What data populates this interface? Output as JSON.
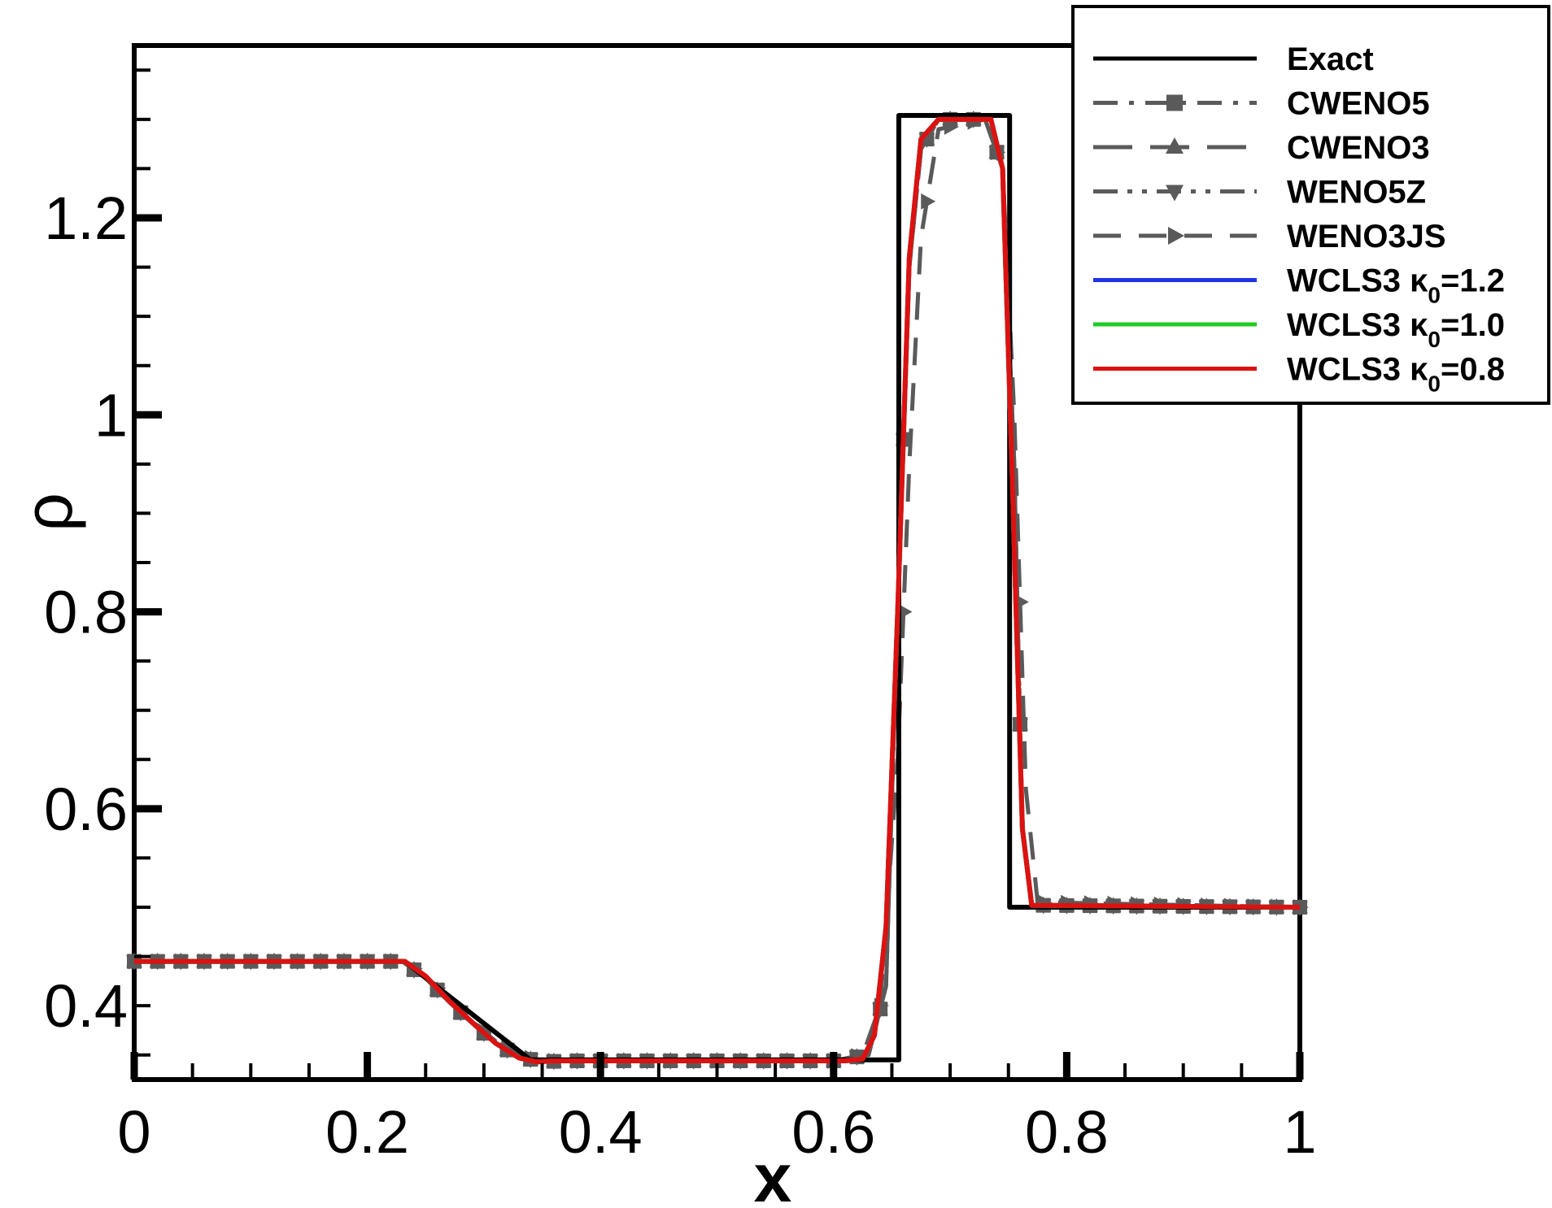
{
  "chart_data": {
    "type": "line",
    "xlabel": "x",
    "ylabel": "ρ",
    "xlim": [
      0,
      1
    ],
    "ylim": [
      0.325,
      1.375
    ],
    "x_ticks": [
      0,
      0.2,
      0.4,
      0.6,
      0.8,
      1
    ],
    "x_tick_labels": [
      "0",
      "0.2",
      "0.4",
      "0.6",
      "0.8",
      "1"
    ],
    "y_ticks": [
      0.4,
      0.6,
      0.8,
      1.0,
      1.2
    ],
    "y_tick_labels": [
      "0.4",
      "0.6",
      "0.8",
      "1",
      "1.2"
    ],
    "grid": false,
    "legend_position": "top-right",
    "series": [
      {
        "name": "Exact",
        "color": "#000000",
        "style": "solid",
        "marker": "none",
        "x": [
          0,
          0.232,
          0.34,
          0.656,
          0.656,
          0.751,
          0.751,
          1.0
        ],
        "y": [
          0.445,
          0.445,
          0.345,
          0.345,
          1.304,
          1.304,
          0.5,
          0.5
        ]
      },
      {
        "name": "CWENO5",
        "color": "#5a5a5a",
        "style": "dashdot",
        "marker": "square",
        "x": [
          0,
          0.23,
          0.25,
          0.27,
          0.29,
          0.31,
          0.33,
          0.35,
          0.37,
          0.6,
          0.63,
          0.645,
          0.655,
          0.665,
          0.675,
          0.69,
          0.73,
          0.745,
          0.755,
          0.762,
          0.77,
          1.0
        ],
        "y": [
          0.445,
          0.445,
          0.428,
          0.404,
          0.382,
          0.362,
          0.348,
          0.343,
          0.344,
          0.344,
          0.35,
          0.42,
          0.8,
          1.15,
          1.27,
          1.3,
          1.3,
          1.25,
          0.95,
          0.58,
          0.502,
          0.5
        ]
      },
      {
        "name": "CWENO3",
        "color": "#5a5a5a",
        "style": "longdash",
        "marker": "triangle-up",
        "x": [
          0,
          0.23,
          0.25,
          0.27,
          0.29,
          0.31,
          0.33,
          0.35,
          0.37,
          0.6,
          0.63,
          0.645,
          0.655,
          0.665,
          0.675,
          0.69,
          0.73,
          0.745,
          0.755,
          0.762,
          0.77,
          1.0
        ],
        "y": [
          0.445,
          0.445,
          0.428,
          0.404,
          0.382,
          0.362,
          0.348,
          0.343,
          0.344,
          0.344,
          0.35,
          0.42,
          0.8,
          1.15,
          1.27,
          1.3,
          1.3,
          1.25,
          0.95,
          0.58,
          0.502,
          0.5
        ]
      },
      {
        "name": "WENO5Z",
        "color": "#5a5a5a",
        "style": "dashdotdot",
        "marker": "triangle-down",
        "x": [
          0,
          0.23,
          0.25,
          0.27,
          0.29,
          0.31,
          0.33,
          0.35,
          0.37,
          0.6,
          0.63,
          0.645,
          0.655,
          0.665,
          0.675,
          0.69,
          0.73,
          0.745,
          0.755,
          0.762,
          0.77,
          1.0
        ],
        "y": [
          0.445,
          0.445,
          0.428,
          0.404,
          0.382,
          0.362,
          0.348,
          0.343,
          0.344,
          0.344,
          0.35,
          0.42,
          0.8,
          1.15,
          1.27,
          1.3,
          1.3,
          1.25,
          0.95,
          0.58,
          0.502,
          0.5
        ]
      },
      {
        "name": "WENO3JS",
        "color": "#5a5a5a",
        "style": "dash",
        "marker": "triangle-right",
        "x": [
          0,
          0.23,
          0.25,
          0.27,
          0.29,
          0.31,
          0.33,
          0.35,
          0.37,
          0.6,
          0.625,
          0.64,
          0.655,
          0.665,
          0.675,
          0.69,
          0.73,
          0.745,
          0.755,
          0.765,
          0.775,
          1.0
        ],
        "y": [
          0.445,
          0.445,
          0.43,
          0.406,
          0.384,
          0.364,
          0.35,
          0.344,
          0.344,
          0.344,
          0.35,
          0.4,
          0.65,
          0.95,
          1.18,
          1.29,
          1.3,
          1.25,
          1.0,
          0.62,
          0.505,
          0.5
        ]
      },
      {
        "name": "WCLS3 κ0=1.2",
        "color": "#1f33e6",
        "style": "solid",
        "marker": "none",
        "x": [
          0,
          0.232,
          0.25,
          0.27,
          0.29,
          0.31,
          0.33,
          0.345,
          0.36,
          0.61,
          0.625,
          0.635,
          0.645,
          0.655,
          0.665,
          0.675,
          0.69,
          0.735,
          0.745,
          0.753,
          0.762,
          0.77,
          1.0
        ],
        "y": [
          0.445,
          0.445,
          0.43,
          0.405,
          0.383,
          0.362,
          0.347,
          0.343,
          0.344,
          0.344,
          0.346,
          0.37,
          0.48,
          0.8,
          1.16,
          1.28,
          1.3,
          1.3,
          1.25,
          0.95,
          0.58,
          0.502,
          0.5
        ]
      },
      {
        "name": "WCLS3 κ0=1.0",
        "color": "#22cc22",
        "style": "solid",
        "marker": "none",
        "x": [
          0,
          0.232,
          0.25,
          0.27,
          0.29,
          0.31,
          0.33,
          0.345,
          0.36,
          0.61,
          0.625,
          0.635,
          0.645,
          0.655,
          0.665,
          0.675,
          0.69,
          0.735,
          0.745,
          0.753,
          0.762,
          0.77,
          1.0
        ],
        "y": [
          0.445,
          0.445,
          0.43,
          0.405,
          0.383,
          0.362,
          0.347,
          0.343,
          0.344,
          0.344,
          0.346,
          0.37,
          0.48,
          0.8,
          1.16,
          1.28,
          1.3,
          1.3,
          1.25,
          0.95,
          0.58,
          0.502,
          0.5
        ]
      },
      {
        "name": "WCLS3 κ0=0.8",
        "color": "#dd1111",
        "style": "solid",
        "marker": "none",
        "x": [
          0,
          0.232,
          0.25,
          0.27,
          0.29,
          0.31,
          0.33,
          0.345,
          0.36,
          0.61,
          0.625,
          0.635,
          0.645,
          0.655,
          0.665,
          0.675,
          0.69,
          0.735,
          0.745,
          0.753,
          0.762,
          0.77,
          1.0
        ],
        "y": [
          0.445,
          0.445,
          0.43,
          0.405,
          0.383,
          0.362,
          0.347,
          0.343,
          0.344,
          0.344,
          0.346,
          0.37,
          0.48,
          0.8,
          1.16,
          1.28,
          1.3,
          1.3,
          1.25,
          0.95,
          0.58,
          0.502,
          0.5
        ]
      }
    ]
  },
  "legend": {
    "items": [
      {
        "prefix": "Exact",
        "sub": "",
        "suffix": ""
      },
      {
        "prefix": "CWENO5",
        "sub": "",
        "suffix": ""
      },
      {
        "prefix": "CWENO3",
        "sub": "",
        "suffix": ""
      },
      {
        "prefix": "WENO5Z",
        "sub": "",
        "suffix": ""
      },
      {
        "prefix": "WENO3JS",
        "sub": "",
        "suffix": ""
      },
      {
        "prefix": "WCLS3 κ",
        "sub": "0",
        "suffix": "=1.2"
      },
      {
        "prefix": "WCLS3 κ",
        "sub": "0",
        "suffix": "=1.0"
      },
      {
        "prefix": "WCLS3 κ",
        "sub": "0",
        "suffix": "=0.8"
      }
    ]
  }
}
